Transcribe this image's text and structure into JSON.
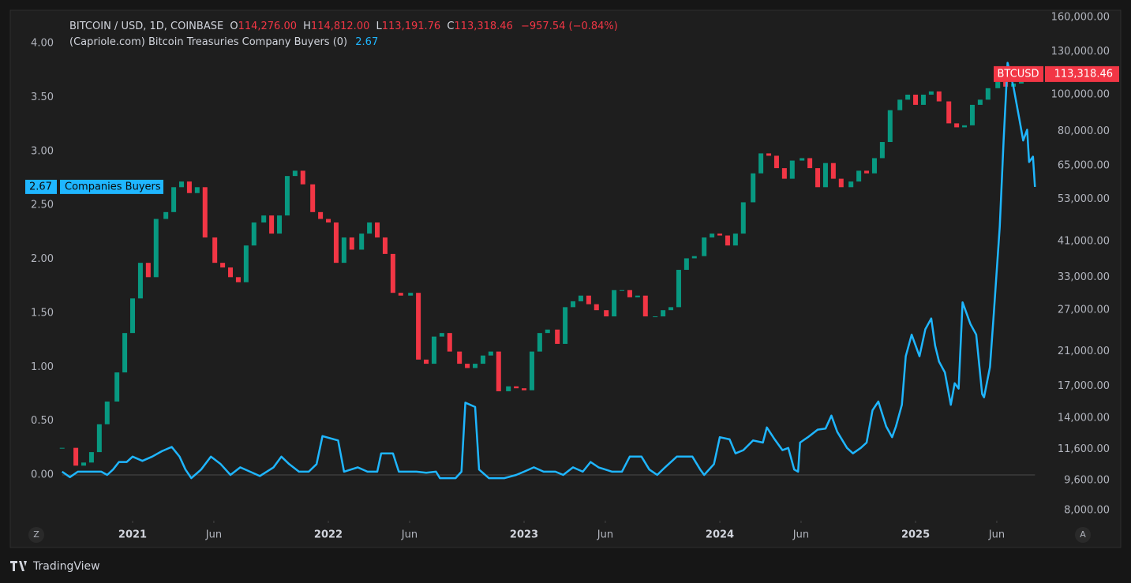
{
  "header": {
    "symbol": "BITCOIN / USD, 1D, COINBASE",
    "ohlc": [
      {
        "key": "O",
        "value": "114,276.00"
      },
      {
        "key": "H",
        "value": "114,812.00"
      },
      {
        "key": "L",
        "value": "113,191.76"
      },
      {
        "key": "C",
        "value": "113,318.46"
      }
    ],
    "change": "−957.54 (−0.84%)",
    "indicator": "(Capriole.com) Bitcoin Treasuries Company Buyers (0)"
  },
  "chart_data": {
    "type": "line",
    "xlim": [
      2020.379,
      2025.645
    ],
    "xticks": [
      {
        "value": 2021,
        "label": "2021"
      },
      {
        "value": 2021.415,
        "label": "Jun"
      },
      {
        "value": 2022,
        "label": "2022"
      },
      {
        "value": 2022.415,
        "label": "Jun"
      },
      {
        "value": 2023,
        "label": "2023"
      },
      {
        "value": 2023.415,
        "label": "Jun"
      },
      {
        "value": 2024,
        "label": "2024"
      },
      {
        "value": 2024.415,
        "label": "Jun"
      },
      {
        "value": 2025,
        "label": "2025"
      },
      {
        "value": 2025.415,
        "label": "Jun"
      }
    ],
    "ylim": [
      -0.424,
      4.3
    ],
    "yticks": [
      {
        "value": 0,
        "label": "0.00"
      },
      {
        "value": 0.5,
        "label": "0.50"
      },
      {
        "value": 1,
        "label": "1.00"
      },
      {
        "value": 1.5,
        "label": "1.50"
      },
      {
        "value": 2,
        "label": "2.00"
      },
      {
        "value": 2.5,
        "label": "2.50"
      },
      {
        "value": 3,
        "label": "3.00"
      },
      {
        "value": 3.5,
        "label": "3.50"
      },
      {
        "value": 4,
        "label": "4.00"
      }
    ],
    "y2lim": [
      7516,
      166200
    ],
    "y2log": true,
    "y2ticks": [
      {
        "value": 160000,
        "label": "160,000.00"
      },
      {
        "value": 130000,
        "label": "130,000.00"
      },
      {
        "value": 100000,
        "label": "100,000.00"
      },
      {
        "value": 80000,
        "label": "80,000.00"
      },
      {
        "value": 65000,
        "label": "65,000.00"
      },
      {
        "value": 53000,
        "label": "53,000.00"
      },
      {
        "value": 41000,
        "label": "41,000.00"
      },
      {
        "value": 33000,
        "label": "33,000.00"
      },
      {
        "value": 27000,
        "label": "27,000.00"
      },
      {
        "value": 21000,
        "label": "21,000.00"
      },
      {
        "value": 17000,
        "label": "17,000.00"
      },
      {
        "value": 14000,
        "label": "14,000.00"
      },
      {
        "value": 11600,
        "label": "11,600.00"
      },
      {
        "value": 9600,
        "label": "9,600.00"
      },
      {
        "value": 8000,
        "label": "8,000.00"
      }
    ],
    "grid": false,
    "baseline": 0,
    "series": [
      {
        "name": "BTCUSD",
        "axis": "y2",
        "style": "candles",
        "up_color": "#089981",
        "down_color": "#f23645",
        "tag_color": "#f23645",
        "last_label": "113,318.46",
        "x": [
          2020.64,
          2020.71,
          2020.75,
          2020.79,
          2020.83,
          2020.87,
          2020.92,
          2020.96,
          2021.0,
          2021.04,
          2021.08,
          2021.12,
          2021.17,
          2021.21,
          2021.25,
          2021.29,
          2021.33,
          2021.37,
          2021.42,
          2021.46,
          2021.5,
          2021.54,
          2021.58,
          2021.62,
          2021.67,
          2021.71,
          2021.75,
          2021.79,
          2021.83,
          2021.87,
          2021.92,
          2021.96,
          2022.0,
          2022.04,
          2022.08,
          2022.12,
          2022.17,
          2022.21,
          2022.25,
          2022.29,
          2022.33,
          2022.37,
          2022.42,
          2022.46,
          2022.5,
          2022.54,
          2022.58,
          2022.62,
          2022.67,
          2022.71,
          2022.75,
          2022.79,
          2022.83,
          2022.87,
          2022.92,
          2022.96,
          2023.0,
          2023.04,
          2023.08,
          2023.12,
          2023.17,
          2023.21,
          2023.25,
          2023.29,
          2023.33,
          2023.37,
          2023.42,
          2023.46,
          2023.5,
          2023.54,
          2023.58,
          2023.62,
          2023.67,
          2023.71,
          2023.75,
          2023.79,
          2023.83,
          2023.87,
          2023.92,
          2023.96,
          2024.0,
          2024.04,
          2024.08,
          2024.12,
          2024.17,
          2024.21,
          2024.25,
          2024.29,
          2024.33,
          2024.37,
          2024.42,
          2024.46,
          2024.5,
          2024.54,
          2024.58,
          2024.62,
          2024.67,
          2024.71,
          2024.75,
          2024.79,
          2024.83,
          2024.87,
          2024.92,
          2024.96,
          2025.0,
          2025.04,
          2025.08,
          2025.12,
          2025.17,
          2025.21,
          2025.25,
          2025.29,
          2025.33,
          2025.37,
          2025.42,
          2025.46,
          2025.5,
          2025.54,
          2025.58,
          2025.6
        ],
        "values": [
          11700,
          10500,
          10700,
          11400,
          13500,
          15500,
          18500,
          23500,
          29000,
          36000,
          33000,
          47000,
          49000,
          57000,
          59000,
          55000,
          57000,
          42000,
          36000,
          35000,
          33000,
          32000,
          40000,
          46000,
          48000,
          43000,
          48000,
          61000,
          63000,
          58000,
          49000,
          47000,
          46000,
          36000,
          42000,
          39000,
          43000,
          46000,
          42000,
          38000,
          30000,
          29500,
          30000,
          20000,
          19500,
          23000,
          23500,
          21000,
          19500,
          19000,
          19500,
          20500,
          21000,
          16500,
          17000,
          16800,
          16600,
          21000,
          23500,
          24000,
          22000,
          27500,
          28500,
          29500,
          28000,
          27000,
          26000,
          30500,
          30500,
          29200,
          29500,
          26000,
          26000,
          27000,
          27500,
          34500,
          37000,
          37500,
          42000,
          43000,
          42500,
          40000,
          43000,
          52000,
          62000,
          70000,
          69000,
          64000,
          60000,
          67000,
          68000,
          64000,
          57000,
          66000,
          60000,
          57000,
          59000,
          63000,
          62000,
          68000,
          75000,
          91000,
          97000,
          100000,
          94000,
          100000,
          102000,
          96000,
          84000,
          82000,
          83000,
          94000,
          97000,
          104000,
          108000,
          105000,
          107000,
          118000,
          118000,
          113318.46
        ]
      },
      {
        "name": "Companies Buyers",
        "color": "#1fb6ff",
        "x": [
          2020.64,
          2020.68,
          2020.72,
          2020.84,
          2020.87,
          2020.9,
          2020.93,
          2020.97,
          2021.0,
          2021.05,
          2021.1,
          2021.15,
          2021.2,
          2021.24,
          2021.27,
          2021.3,
          2021.35,
          2021.4,
          2021.45,
          2021.5,
          2021.55,
          2021.6,
          2021.65,
          2021.72,
          2021.76,
          2021.8,
          2021.85,
          2021.9,
          2021.94,
          2021.97,
          2022.05,
          2022.08,
          2022.15,
          2022.2,
          2022.25,
          2022.27,
          2022.33,
          2022.36,
          2022.45,
          2022.5,
          2022.55,
          2022.57,
          2022.65,
          2022.68,
          2022.7,
          2022.75,
          2022.77,
          2022.82,
          2022.9,
          2022.96,
          2023.0,
          2023.05,
          2023.1,
          2023.16,
          2023.2,
          2023.25,
          2023.3,
          2023.34,
          2023.38,
          2023.45,
          2023.5,
          2023.54,
          2023.6,
          2023.64,
          2023.68,
          2023.72,
          2023.78,
          2023.86,
          2023.9,
          2023.92,
          2023.97,
          2024.0,
          2024.05,
          2024.08,
          2024.12,
          2024.17,
          2024.22,
          2024.24,
          2024.28,
          2024.32,
          2024.35,
          2024.38,
          2024.4,
          2024.41,
          2024.45,
          2024.5,
          2024.54,
          2024.57,
          2024.6,
          2024.65,
          2024.68,
          2024.72,
          2024.75,
          2024.78,
          2024.81,
          2024.85,
          2024.88,
          2024.9,
          2024.93,
          2024.95,
          2024.98,
          2025.02,
          2025.05,
          2025.08,
          2025.1,
          2025.12,
          2025.15,
          2025.17,
          2025.18,
          2025.2,
          2025.22,
          2025.24,
          2025.28,
          2025.31,
          2025.34,
          2025.35,
          2025.38,
          2025.4,
          2025.43,
          2025.45,
          2025.47,
          2025.5,
          2025.53,
          2025.55,
          2025.57,
          2025.58,
          2025.6,
          2025.61
        ],
        "values": [
          0.03,
          -0.02,
          0.03,
          0.03,
          0,
          0.05,
          0.12,
          0.12,
          0.17,
          0.13,
          0.17,
          0.22,
          0.26,
          0.17,
          0.05,
          -0.03,
          0.05,
          0.17,
          0.1,
          0,
          0.07,
          0.03,
          -0.01,
          0.07,
          0.17,
          0.1,
          0.03,
          0.03,
          0.1,
          0.36,
          0.32,
          0.03,
          0.07,
          0.03,
          0.03,
          0.2,
          0.2,
          0.03,
          0.03,
          0.02,
          0.03,
          -0.03,
          -0.03,
          0.03,
          0.67,
          0.63,
          0.05,
          -0.03,
          -0.03,
          0,
          0.03,
          0.07,
          0.03,
          0.03,
          0,
          0.07,
          0.03,
          0.12,
          0.07,
          0.03,
          0.03,
          0.17,
          0.17,
          0.05,
          0,
          0.07,
          0.17,
          0.17,
          0.05,
          0,
          0.1,
          0.35,
          0.33,
          0.2,
          0.23,
          0.32,
          0.3,
          0.44,
          0.33,
          0.23,
          0.25,
          0.05,
          0.03,
          0.3,
          0.35,
          0.42,
          0.43,
          0.55,
          0.4,
          0.25,
          0.2,
          0.25,
          0.3,
          0.6,
          0.68,
          0.45,
          0.35,
          0.45,
          0.65,
          1.1,
          1.3,
          1.1,
          1.35,
          1.45,
          1.2,
          1.05,
          0.95,
          0.75,
          0.65,
          0.85,
          0.8,
          1.6,
          1.4,
          1.3,
          0.75,
          0.72,
          1.0,
          1.5,
          2.3,
          3.1,
          3.82,
          3.6,
          3.3,
          3.1,
          3.2,
          2.9,
          2.95,
          2.67
        ]
      }
    ]
  },
  "ui": {
    "left_button": "Z",
    "right_button": "A",
    "brand": "TradingView"
  }
}
